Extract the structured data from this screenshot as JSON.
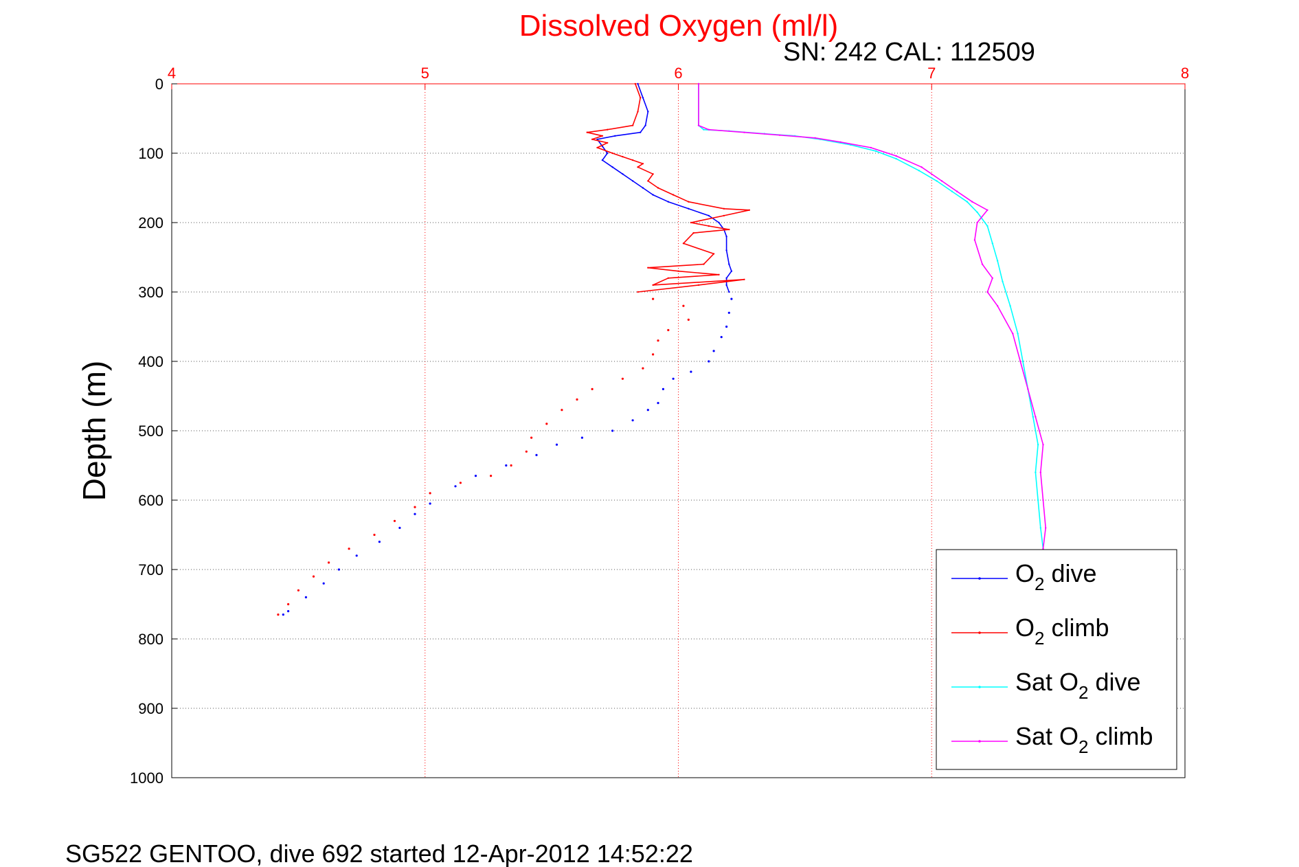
{
  "chart_data": {
    "type": "line",
    "title": "Dissolved Oxygen (ml/l)",
    "subtitle": "SN: 242  CAL: 112509",
    "ylabel": "Depth (m)",
    "footer": "SG522 GENTOO, dive 692 started 12-Apr-2012 14:52:22",
    "xlim": [
      4,
      8
    ],
    "ylim": [
      0,
      1000
    ],
    "y_reversed": true,
    "x_axis_position": "top",
    "x_ticks": [
      4,
      5,
      6,
      7,
      8
    ],
    "x_tick_labels": [
      "4",
      "5",
      "6",
      "7",
      "8"
    ],
    "y_ticks": [
      0,
      100,
      200,
      300,
      400,
      500,
      600,
      700,
      800,
      900,
      1000
    ],
    "y_tick_labels": [
      "0",
      "100",
      "200",
      "300",
      "400",
      "500",
      "600",
      "700",
      "800",
      "900",
      "1000"
    ],
    "grid": true,
    "legend_position": "bottom-right",
    "colors": {
      "title": "#ff0000",
      "x_axis": "#ff0000",
      "grid_x": "#ff0000",
      "grid_y": "#555555"
    },
    "series": [
      {
        "name": "O2 dive",
        "legend_main": "O",
        "legend_sub": "2",
        "legend_suffix": " dive",
        "color": "#0000ff",
        "style": "line",
        "points": [
          [
            5.84,
            0
          ],
          [
            5.86,
            20
          ],
          [
            5.88,
            40
          ],
          [
            5.87,
            60
          ],
          [
            5.85,
            70
          ],
          [
            5.75,
            75
          ],
          [
            5.68,
            80
          ],
          [
            5.7,
            90
          ],
          [
            5.72,
            100
          ],
          [
            5.7,
            110
          ],
          [
            5.74,
            120
          ],
          [
            5.78,
            130
          ],
          [
            5.82,
            140
          ],
          [
            5.86,
            150
          ],
          [
            5.9,
            160
          ],
          [
            5.96,
            170
          ],
          [
            6.04,
            180
          ],
          [
            6.12,
            190
          ],
          [
            6.16,
            200
          ],
          [
            6.18,
            210
          ],
          [
            6.19,
            220
          ],
          [
            6.19,
            240
          ],
          [
            6.2,
            260
          ],
          [
            6.21,
            270
          ],
          [
            6.19,
            280
          ],
          [
            6.19,
            290
          ],
          [
            6.2,
            300
          ]
        ]
      },
      {
        "name": "O2 dive (sparse)",
        "legend": false,
        "color": "#0000ff",
        "style": "dots",
        "points": [
          [
            6.21,
            310
          ],
          [
            6.2,
            330
          ],
          [
            6.19,
            350
          ],
          [
            6.17,
            365
          ],
          [
            6.14,
            385
          ],
          [
            6.12,
            400
          ],
          [
            6.05,
            415
          ],
          [
            5.98,
            425
          ],
          [
            5.94,
            440
          ],
          [
            5.92,
            460
          ],
          [
            5.88,
            470
          ],
          [
            5.82,
            485
          ],
          [
            5.74,
            500
          ],
          [
            5.62,
            510
          ],
          [
            5.52,
            520
          ],
          [
            5.44,
            535
          ],
          [
            5.32,
            550
          ],
          [
            5.2,
            565
          ],
          [
            5.12,
            580
          ],
          [
            5.02,
            605
          ],
          [
            4.96,
            620
          ],
          [
            4.9,
            640
          ],
          [
            4.82,
            660
          ],
          [
            4.73,
            680
          ],
          [
            4.66,
            700
          ],
          [
            4.6,
            720
          ],
          [
            4.53,
            740
          ],
          [
            4.46,
            760
          ],
          [
            4.44,
            765
          ]
        ]
      },
      {
        "name": "O2 climb",
        "legend_main": "O",
        "legend_sub": "2",
        "legend_suffix": " climb",
        "color": "#ff0000",
        "style": "line",
        "points": [
          [
            5.83,
            0
          ],
          [
            5.85,
            20
          ],
          [
            5.84,
            40
          ],
          [
            5.82,
            60
          ],
          [
            5.72,
            66
          ],
          [
            5.64,
            70
          ],
          [
            5.7,
            75
          ],
          [
            5.66,
            80
          ],
          [
            5.72,
            85
          ],
          [
            5.68,
            92
          ],
          [
            5.74,
            100
          ],
          [
            5.78,
            105
          ],
          [
            5.82,
            110
          ],
          [
            5.86,
            115
          ],
          [
            5.84,
            120
          ],
          [
            5.9,
            130
          ],
          [
            5.88,
            140
          ],
          [
            5.92,
            150
          ],
          [
            5.98,
            160
          ],
          [
            6.04,
            170
          ],
          [
            6.18,
            180
          ],
          [
            6.28,
            182
          ],
          [
            6.18,
            190
          ],
          [
            6.05,
            200
          ],
          [
            6.12,
            205
          ],
          [
            6.2,
            210
          ],
          [
            6.06,
            215
          ],
          [
            6.02,
            230
          ],
          [
            6.14,
            245
          ],
          [
            6.1,
            260
          ],
          [
            5.88,
            265
          ],
          [
            6.0,
            270
          ],
          [
            6.16,
            275
          ],
          [
            5.96,
            280
          ],
          [
            5.9,
            290
          ],
          [
            6.26,
            282
          ],
          [
            6.08,
            290
          ],
          [
            5.84,
            300
          ]
        ]
      },
      {
        "name": "O2 climb (sparse)",
        "legend": false,
        "color": "#ff0000",
        "style": "dots",
        "points": [
          [
            5.9,
            310
          ],
          [
            6.02,
            320
          ],
          [
            6.04,
            340
          ],
          [
            5.96,
            355
          ],
          [
            5.92,
            370
          ],
          [
            5.9,
            390
          ],
          [
            5.86,
            410
          ],
          [
            5.78,
            425
          ],
          [
            5.66,
            440
          ],
          [
            5.6,
            455
          ],
          [
            5.54,
            470
          ],
          [
            5.48,
            490
          ],
          [
            5.42,
            510
          ],
          [
            5.4,
            530
          ],
          [
            5.34,
            550
          ],
          [
            5.26,
            565
          ],
          [
            5.14,
            575
          ],
          [
            5.02,
            590
          ],
          [
            4.96,
            610
          ],
          [
            4.88,
            630
          ],
          [
            4.8,
            650
          ],
          [
            4.7,
            670
          ],
          [
            4.62,
            690
          ],
          [
            4.56,
            710
          ],
          [
            4.5,
            730
          ],
          [
            4.46,
            750
          ],
          [
            4.42,
            765
          ]
        ]
      },
      {
        "name": "Sat O2 dive",
        "legend_main": "Sat O",
        "legend_sub": "2",
        "legend_suffix": " dive",
        "color": "#00ffff",
        "style": "line",
        "points": [
          [
            6.08,
            0
          ],
          [
            6.08,
            60
          ],
          [
            6.1,
            66
          ],
          [
            6.2,
            68
          ],
          [
            6.34,
            72
          ],
          [
            6.46,
            75
          ],
          [
            6.56,
            80
          ],
          [
            6.68,
            88
          ],
          [
            6.78,
            97
          ],
          [
            6.86,
            108
          ],
          [
            6.95,
            125
          ],
          [
            7.02,
            140
          ],
          [
            7.08,
            155
          ],
          [
            7.14,
            170
          ],
          [
            7.18,
            185
          ],
          [
            7.22,
            205
          ],
          [
            7.24,
            230
          ],
          [
            7.26,
            255
          ],
          [
            7.28,
            285
          ],
          [
            7.31,
            320
          ],
          [
            7.34,
            360
          ],
          [
            7.36,
            400
          ],
          [
            7.38,
            440
          ],
          [
            7.4,
            480
          ],
          [
            7.42,
            520
          ],
          [
            7.41,
            560
          ],
          [
            7.42,
            600
          ],
          [
            7.43,
            640
          ],
          [
            7.44,
            670
          ]
        ]
      },
      {
        "name": "Sat O2 climb",
        "legend_main": "Sat O",
        "legend_sub": "2",
        "legend_suffix": " climb",
        "color": "#ff00ff",
        "style": "line",
        "points": [
          [
            6.08,
            0
          ],
          [
            6.08,
            60
          ],
          [
            6.12,
            66
          ],
          [
            6.26,
            70
          ],
          [
            6.4,
            74
          ],
          [
            6.54,
            78
          ],
          [
            6.64,
            84
          ],
          [
            6.76,
            92
          ],
          [
            6.86,
            104
          ],
          [
            6.96,
            120
          ],
          [
            7.04,
            140
          ],
          [
            7.1,
            155
          ],
          [
            7.16,
            170
          ],
          [
            7.22,
            182
          ],
          [
            7.18,
            200
          ],
          [
            7.17,
            225
          ],
          [
            7.2,
            260
          ],
          [
            7.24,
            280
          ],
          [
            7.22,
            300
          ],
          [
            7.26,
            320
          ],
          [
            7.32,
            360
          ],
          [
            7.35,
            400
          ],
          [
            7.38,
            440
          ],
          [
            7.41,
            480
          ],
          [
            7.44,
            520
          ],
          [
            7.43,
            560
          ],
          [
            7.44,
            600
          ],
          [
            7.45,
            640
          ],
          [
            7.44,
            670
          ]
        ]
      }
    ]
  }
}
